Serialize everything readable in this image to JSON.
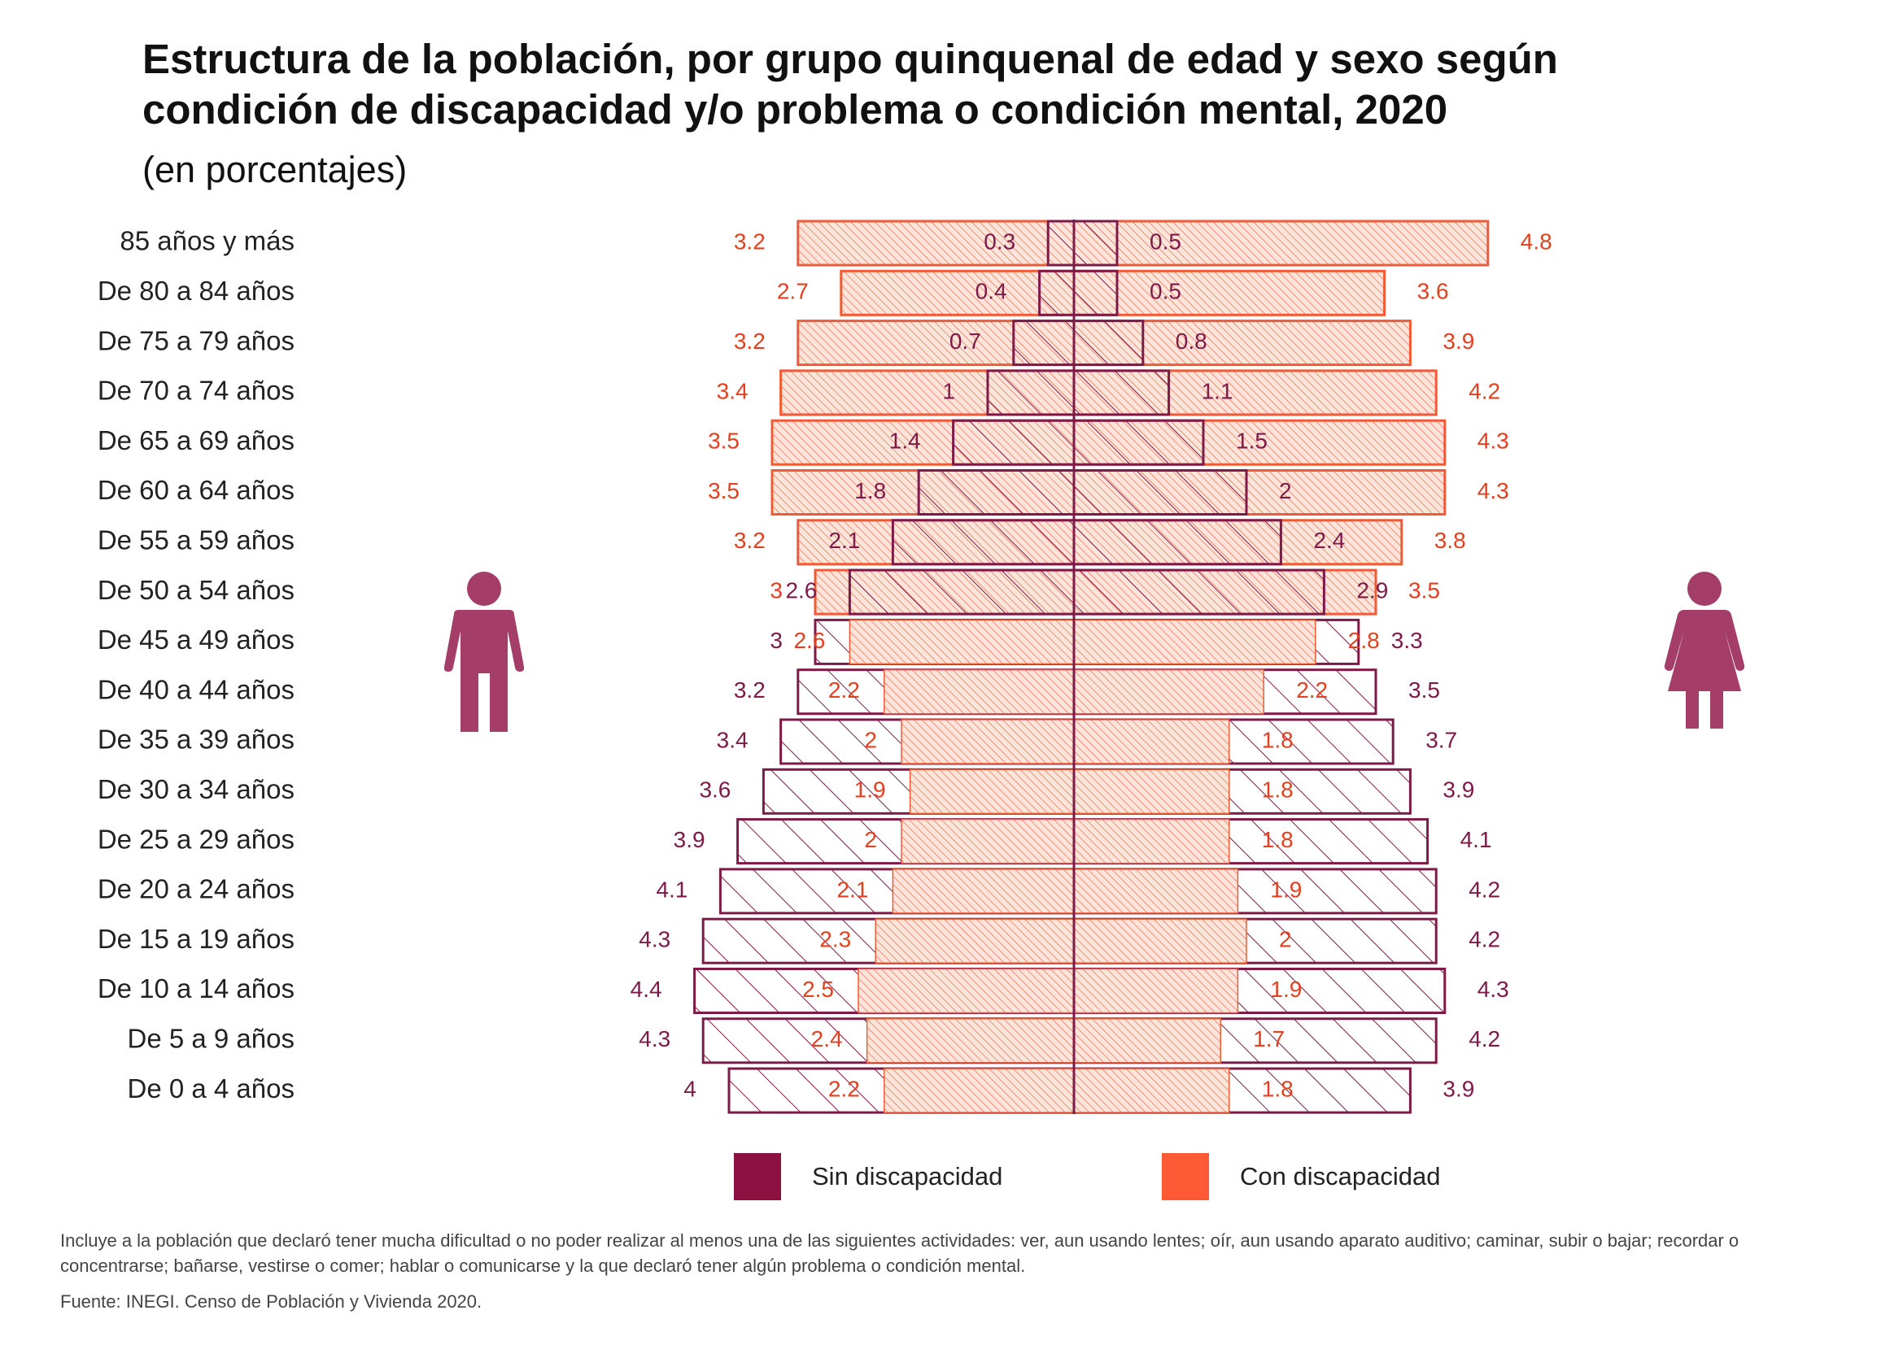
{
  "header": {
    "title_line1": "Estructura de la población, por grupo quinquenal de edad y sexo según",
    "title_line2": "condición de discapacidad y/o problema o condición mental, 2020",
    "subtitle": "(en porcentajes)"
  },
  "chart_data": {
    "type": "bar",
    "orientation": "horizontal-population-pyramid",
    "categories": [
      "85 años y más",
      "De 80 a 84 años",
      "De 75 a 79 años",
      "De 70 a 74 años",
      "De 65 a 69 años",
      "De 60 a 64 años",
      "De 55 a 59 años",
      "De 50 a 54 años",
      "De 45 a 49 años",
      "De 40 a 44 años",
      "De 35 a 39 años",
      "De 30 a 34 años",
      "De 25 a 29 años",
      "De 20 a 24 años",
      "De 15 a 19 años",
      "De 10 a 14 años",
      "De 5 a 9 años",
      "De 0 a 4 años"
    ],
    "series": [
      {
        "name": "Sin discapacidad",
        "side": "hombres",
        "values": [
          0.3,
          0.4,
          0.7,
          1,
          1.4,
          1.8,
          2.1,
          2.6,
          3,
          3.2,
          3.4,
          3.6,
          3.9,
          4.1,
          4.3,
          4.4,
          4.3,
          4
        ]
      },
      {
        "name": "Con discapacidad",
        "side": "hombres",
        "values": [
          3.2,
          2.7,
          3.2,
          3.4,
          3.5,
          3.5,
          3.2,
          3,
          2.6,
          2.2,
          2,
          1.9,
          2,
          2.1,
          2.3,
          2.5,
          2.4,
          2.2
        ]
      },
      {
        "name": "Sin discapacidad",
        "side": "mujeres",
        "values": [
          0.5,
          0.5,
          0.8,
          1.1,
          1.5,
          2,
          2.4,
          2.9,
          3.3,
          3.5,
          3.7,
          3.9,
          4.1,
          4.2,
          4.2,
          4.3,
          4.2,
          3.9
        ]
      },
      {
        "name": "Con discapacidad",
        "side": "mujeres",
        "values": [
          4.8,
          3.6,
          3.9,
          4.2,
          4.3,
          4.3,
          3.8,
          3.5,
          2.8,
          2.2,
          1.8,
          1.8,
          1.8,
          1.9,
          2,
          1.9,
          1.7,
          1.8
        ]
      }
    ],
    "labels": {
      "hombres_sin": [
        "0.3",
        "0.4",
        "0.7",
        "1",
        "1.4",
        "1.8",
        "2.1",
        "2.6",
        "3",
        "3.2",
        "3.4",
        "3.6",
        "3.9",
        "4.1",
        "4.3",
        "4.4",
        "4.3",
        "4"
      ],
      "hombres_con": [
        "3.2",
        "2.7",
        "3.2",
        "3.4",
        "3.5",
        "3.5",
        "3.2",
        "3",
        "2.6",
        "2.2",
        "2",
        "1.9",
        "2",
        "2.1",
        "2.3",
        "2.5",
        "2.4",
        "2.2"
      ],
      "mujeres_sin": [
        "0.5",
        "0.5",
        "0.8",
        "1.1",
        "1.5",
        "2",
        "2.4",
        "2.9",
        "3.3",
        "3.5",
        "3.7",
        "3.9",
        "4.1",
        "4.2",
        "4.2",
        "4.3",
        "4.2",
        "3.9"
      ],
      "mujeres_con": [
        "4.8",
        "3.6",
        "3.9",
        "4.2",
        "4.3",
        "4.3",
        "3.8",
        "3.5",
        "2.8",
        "2.2",
        "1.8",
        "1.8",
        "1.8",
        "1.9",
        "2",
        "1.9",
        "1.7",
        "1.8"
      ]
    },
    "xlim": [
      -5,
      5
    ],
    "grid": false,
    "legend_position": "bottom-center"
  },
  "legend": {
    "sin": {
      "label": "Sin discapacidad",
      "color": "#8c1040"
    },
    "con": {
      "label": "Con discapacidad",
      "color": "#ff5a36"
    }
  },
  "colors": {
    "sin_outline": "#7e1a47",
    "con_outline": "#f05a35",
    "icon": "#a43d68"
  },
  "icons": {
    "left": "man-icon",
    "right": "woman-icon"
  },
  "footer": {
    "note": "Incluye a la población que declaró tener mucha dificultad o no poder realizar al menos una de las siguientes actividades: ver, aun usando lentes; oír, aun usando aparato auditivo; caminar, subir o bajar; recordar o concentrarse; bañarse, vestirse o comer; hablar o comunicarse y la que declaró tener algún problema o condición mental.",
    "source": "Fuente: INEGI. Censo de Población y Vivienda 2020."
  }
}
